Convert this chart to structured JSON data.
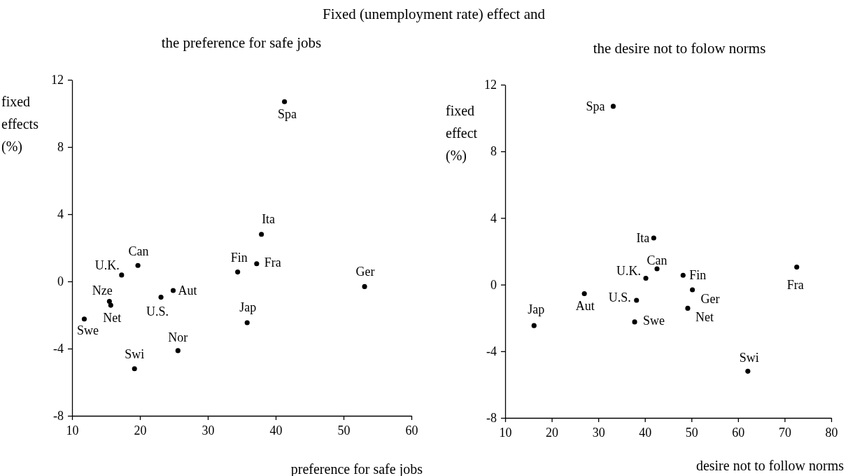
{
  "chart_data": [
    {
      "type": "scatter",
      "title": "Fixed (unemployment rate) effect and",
      "subtitle": "the preference for safe jobs",
      "xlabel": "preference for safe jobs",
      "ylabel": "fixed effects (%)",
      "color": "#000000",
      "marker": "circle",
      "x": [
        41.3,
        37.9,
        37.2,
        34.4,
        53.1,
        19.7,
        17.3,
        24.9,
        23.1,
        15.5,
        15.7,
        11.8,
        35.8,
        25.6,
        19.2
      ],
      "values": [
        10.7,
        2.8,
        1.05,
        0.56,
        -0.31,
        0.95,
        0.38,
        -0.54,
        -0.94,
        -1.19,
        -1.42,
        -2.24,
        -2.46,
        -4.12,
        -5.2
      ],
      "xlim": [
        10,
        60
      ],
      "xticks": [
        10,
        20,
        30,
        40,
        50,
        60
      ],
      "ylim": [
        -8,
        12
      ],
      "yticks": [
        -8,
        -4,
        0,
        4,
        8,
        12
      ],
      "annotations": [
        {
          "text": "Spa",
          "x": 41.3,
          "y": 10.7
        },
        {
          "text": "Ita",
          "x": 37.9,
          "y": 2.8
        },
        {
          "text": "Fra",
          "x": 37.2,
          "y": 1.05
        },
        {
          "text": "Fin",
          "x": 34.4,
          "y": 0.56
        },
        {
          "text": "Ger",
          "x": 53.1,
          "y": -0.31
        },
        {
          "text": "Can",
          "x": 19.7,
          "y": 0.95
        },
        {
          "text": "U.K.",
          "x": 17.3,
          "y": 0.38
        },
        {
          "text": "Aut",
          "x": 24.9,
          "y": -0.54
        },
        {
          "text": "U.S.",
          "x": 23.1,
          "y": -0.94
        },
        {
          "text": "Nze",
          "x": 15.5,
          "y": -1.19
        },
        {
          "text": "Net",
          "x": 15.7,
          "y": -1.42
        },
        {
          "text": "Swe",
          "x": 11.8,
          "y": -2.24
        },
        {
          "text": "Jap",
          "x": 35.8,
          "y": -2.46
        },
        {
          "text": "Nor",
          "x": 25.6,
          "y": -4.12
        },
        {
          "text": "Swi",
          "x": 19.2,
          "y": -5.2
        }
      ]
    },
    {
      "type": "scatter",
      "subtitle": "the desire not to folow norms",
      "xlabel": "desire not to follow norms",
      "ylabel": "fixed effect (%)",
      "color": "#000000",
      "marker": "circle",
      "x": [
        33.2,
        41.9,
        72.6,
        48.2,
        50.2,
        42.6,
        40.2,
        27.0,
        38.2,
        49.2,
        37.8,
        16.2,
        62.1
      ],
      "values": [
        10.7,
        2.8,
        1.05,
        0.56,
        -0.31,
        0.95,
        0.38,
        -0.54,
        -0.94,
        -1.42,
        -2.24,
        -2.46,
        -5.2
      ],
      "xlim": [
        10,
        80
      ],
      "xticks": [
        10,
        20,
        30,
        40,
        50,
        60,
        70,
        80
      ],
      "ylim": [
        -8,
        12
      ],
      "yticks": [
        -8,
        -4,
        0,
        4,
        8,
        12
      ],
      "annotations": [
        {
          "text": "Spa",
          "x": 33.2,
          "y": 10.7
        },
        {
          "text": "Ita",
          "x": 41.9,
          "y": 2.8
        },
        {
          "text": "Fra",
          "x": 72.6,
          "y": 1.05
        },
        {
          "text": "Fin",
          "x": 48.2,
          "y": 0.56
        },
        {
          "text": "Ger",
          "x": 50.2,
          "y": -0.31
        },
        {
          "text": "Can",
          "x": 42.6,
          "y": 0.95
        },
        {
          "text": "U.K.",
          "x": 40.2,
          "y": 0.38
        },
        {
          "text": "Aut",
          "x": 27.0,
          "y": -0.54
        },
        {
          "text": "U.S.",
          "x": 38.2,
          "y": -0.94
        },
        {
          "text": "Net",
          "x": 49.2,
          "y": -1.42
        },
        {
          "text": "Swe",
          "x": 37.8,
          "y": -2.24
        },
        {
          "text": "Jap",
          "x": 16.2,
          "y": -2.46
        },
        {
          "text": "Swi",
          "x": 62.1,
          "y": -5.2
        }
      ]
    }
  ]
}
